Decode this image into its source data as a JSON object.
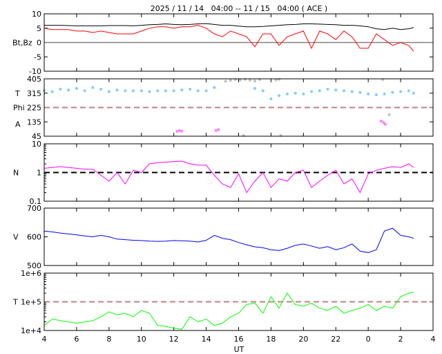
{
  "chart_data": {
    "type": "line",
    "title": "2025 / 11 / 14   04:00 -- 11 / 15   04:00 ( ACE )",
    "xlabel": "UT",
    "x_tick_labels": [
      "4",
      "6",
      "8",
      "10",
      "12",
      "14",
      "16",
      "18",
      "20",
      "22",
      "0",
      "2",
      "4"
    ],
    "xlim_hours_since_start": [
      0,
      24
    ],
    "sample_hours": [
      0,
      0.5,
      1,
      1.5,
      2,
      2.5,
      3,
      3.5,
      4,
      4.5,
      5,
      5.5,
      6,
      6.5,
      7,
      7.5,
      8,
      8.5,
      9,
      9.5,
      10,
      10.5,
      11,
      11.5,
      12,
      12.5,
      13,
      13.5,
      14,
      14.5,
      15,
      15.5,
      16,
      16.5,
      17,
      17.5,
      18,
      18.5,
      19,
      19.5,
      20,
      20.5,
      21,
      21.5,
      22,
      22.5,
      22.8
    ],
    "panels": [
      {
        "name": "mag",
        "ylabel": "Bt,Bz",
        "scale": "linear",
        "ylim": [
          -10,
          10
        ],
        "tick_labels": [
          "10",
          "5",
          "0",
          "-5",
          "-10"
        ],
        "ticks": [
          10,
          5,
          0,
          -5,
          -10
        ],
        "refline": {
          "value": 0,
          "color": "#808080",
          "dash": false
        },
        "series": [
          {
            "name": "Bt",
            "color": "#000000",
            "values": [
              6,
              6,
              6,
              5.9,
              5.8,
              5.8,
              5.8,
              5.8,
              5.9,
              5.9,
              5.9,
              5.8,
              6,
              6.2,
              6.3,
              6.5,
              6.3,
              6.2,
              6.3,
              6.5,
              6.6,
              6.3,
              6,
              6,
              5.7,
              5.5,
              5.5,
              5.6,
              5.8,
              6,
              6.2,
              6.3,
              6.5,
              6.5,
              6.4,
              6.3,
              6.2,
              6,
              6,
              5.8,
              5.5,
              4.8,
              4.5,
              5,
              4.5,
              4.8,
              5.2
            ]
          },
          {
            "name": "Bz",
            "color": "#ff0000",
            "values": [
              5,
              4.5,
              4.5,
              4.5,
              4,
              4,
              3.5,
              4,
              3.5,
              3,
              3,
              3,
              4,
              5,
              5.5,
              5.5,
              5,
              5.5,
              5.5,
              6,
              5,
              3,
              2,
              4,
              3,
              2,
              -1.5,
              3,
              3,
              -1,
              2,
              3,
              4,
              -2,
              4,
              3,
              1,
              4,
              2,
              -2,
              -2,
              3,
              1,
              -1,
              0,
              -1,
              -3
            ]
          }
        ]
      },
      {
        "name": "phi",
        "ylabel_lines": [
          "T",
          "Phi",
          "A"
        ],
        "scale": "linear",
        "ylim": [
          45,
          405
        ],
        "tick_labels": [
          "405",
          "315",
          "225",
          "135",
          "45"
        ],
        "ticks": [
          405,
          315,
          225,
          135,
          45
        ],
        "refline": {
          "value": 225,
          "color": "#c08080",
          "dash": true
        },
        "series": [
          {
            "name": "Phi",
            "color": "#80ccff",
            "points": true,
            "values": [
              330,
              325,
              340,
              335,
              345,
              330,
              350,
              340,
              325,
              335,
              330,
              330,
              330,
              325,
              330,
              330,
              330,
              335,
              340,
              330,
              330,
              350,
              null,
              null,
              null,
              null,
              345,
              330,
              280,
              300,
              310,
              315,
              310,
              325,
              330,
              340,
              335,
              330,
              325,
              320,
              310,
              305,
              310,
              320,
              325,
              330,
              315
            ]
          },
          {
            "name": "Phi-gray",
            "color": "#c0c0c0",
            "points": true,
            "hours": [
              11.2,
              11.5,
              11.8,
              12.1,
              12.4,
              12.7,
              13.0,
              13.3,
              14.3,
              14.5,
              12.3,
              14.6,
              20.9,
              21.3
            ],
            "values": [
              390,
              395,
              400,
              398,
              402,
              396,
              392,
              400,
              398,
              402,
              50,
              50,
              400,
              180
            ]
          },
          {
            "name": "A",
            "color": "#ff80ff",
            "points": true,
            "hours": [
              8.2,
              8.35,
              8.5,
              10.6,
              10.75,
              20.8,
              20.95,
              21.05
            ],
            "values": [
              75,
              80,
              77,
              80,
              86,
              140,
              130,
              120
            ]
          }
        ]
      },
      {
        "name": "density",
        "ylabel": "N",
        "scale": "log",
        "ylim": [
          0.1,
          10
        ],
        "tick_labels": [
          "10",
          "1",
          "0.1"
        ],
        "ticks": [
          10,
          1,
          0.1
        ],
        "refline": {
          "value": 1,
          "color": "#000000",
          "dash": true
        },
        "series": [
          {
            "name": "N",
            "color": "#ff00ff",
            "values": [
              1.4,
              1.5,
              1.6,
              1.5,
              1.4,
              1.3,
              1.3,
              0.8,
              0.5,
              1.0,
              0.4,
              1.2,
              1.0,
              2.0,
              2.2,
              2.3,
              2.4,
              2.5,
              2.0,
              1.8,
              1.8,
              0.8,
              0.4,
              0.3,
              0.9,
              0.2,
              0.5,
              1.0,
              0.3,
              0.6,
              0.5,
              1.0,
              1.2,
              0.3,
              0.5,
              0.8,
              1.2,
              0.4,
              0.6,
              0.2,
              0.9,
              1.2,
              1.4,
              1.6,
              1.5,
              2.0,
              1.5
            ]
          }
        ]
      },
      {
        "name": "speed",
        "ylabel": "V",
        "scale": "linear",
        "ylim": [
          500,
          700
        ],
        "tick_labels": [
          "700",
          "600",
          "500"
        ],
        "ticks": [
          700,
          600,
          500
        ],
        "refline": null,
        "series": [
          {
            "name": "V",
            "color": "#0000ff",
            "values": [
              620,
              617,
              613,
              610,
              607,
              603,
              600,
              605,
              600,
              592,
              590,
              588,
              587,
              585,
              584,
              585,
              587,
              586,
              585,
              582,
              588,
              605,
              595,
              590,
              580,
              572,
              565,
              562,
              555,
              552,
              560,
              570,
              575,
              568,
              560,
              566,
              555,
              562,
              575,
              550,
              545,
              555,
              620,
              630,
              605,
              600,
              595
            ]
          }
        ]
      },
      {
        "name": "temperature",
        "ylabel": "T",
        "scale": "log",
        "ylim": [
          10000,
          1000000
        ],
        "tick_labels": [
          "1e+6",
          "1e+5",
          "1e+4"
        ],
        "ticks": [
          1000000,
          100000,
          10000
        ],
        "refline": {
          "value": 100000,
          "color": "#c08080",
          "dash": true
        },
        "series": [
          {
            "name": "T",
            "color": "#00ff00",
            "values": [
              15000,
              25000,
              22000,
              20000,
              18000,
              20000,
              22000,
              30000,
              45000,
              35000,
              40000,
              30000,
              50000,
              40000,
              15000,
              14000,
              12000,
              11000,
              30000,
              20000,
              25000,
              15000,
              18000,
              30000,
              40000,
              80000,
              90000,
              40000,
              150000,
              60000,
              200000,
              80000,
              70000,
              90000,
              60000,
              50000,
              70000,
              40000,
              50000,
              60000,
              80000,
              50000,
              70000,
              60000,
              150000,
              200000,
              220000
            ]
          }
        ]
      }
    ]
  }
}
